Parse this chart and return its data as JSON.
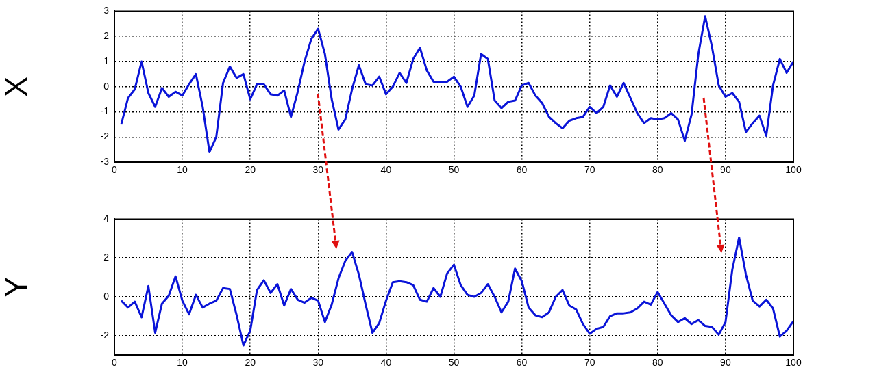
{
  "chart_data": [
    {
      "type": "line",
      "ylabel": "X",
      "color": "#0a14d8",
      "grid": true,
      "xlim": [
        0,
        100
      ],
      "ylim": [
        -3,
        3
      ],
      "xticks": [
        0,
        10,
        20,
        30,
        40,
        50,
        60,
        70,
        80,
        90,
        100
      ],
      "yticks": [
        -3,
        -2,
        -1,
        0,
        1,
        2,
        3
      ],
      "x": [
        1,
        2,
        3,
        4,
        5,
        6,
        7,
        8,
        9,
        10,
        11,
        12,
        13,
        14,
        15,
        16,
        17,
        18,
        19,
        20,
        21,
        22,
        23,
        24,
        25,
        26,
        27,
        28,
        29,
        30,
        31,
        32,
        33,
        34,
        35,
        36,
        37,
        38,
        39,
        40,
        41,
        42,
        43,
        44,
        45,
        46,
        47,
        48,
        49,
        50,
        51,
        52,
        53,
        54,
        55,
        56,
        57,
        58,
        59,
        60,
        61,
        62,
        63,
        64,
        65,
        66,
        67,
        68,
        69,
        70,
        71,
        72,
        73,
        74,
        75,
        76,
        77,
        78,
        79,
        80,
        81,
        82,
        83,
        84,
        85,
        86,
        87,
        88,
        89,
        90,
        91,
        92,
        93,
        94,
        95,
        96,
        97,
        98,
        99,
        100
      ],
      "values": [
        -1.5,
        -0.45,
        -0.1,
        1.0,
        -0.25,
        -0.8,
        -0.05,
        -0.4,
        -0.2,
        -0.35,
        0.1,
        0.5,
        -0.8,
        -2.6,
        -2.0,
        0.15,
        0.8,
        0.35,
        0.5,
        -0.5,
        0.1,
        0.1,
        -0.3,
        -0.35,
        -0.15,
        -1.2,
        -0.2,
        1.0,
        1.9,
        2.3,
        1.3,
        -0.5,
        -1.7,
        -1.3,
        -0.1,
        0.85,
        0.1,
        0.05,
        0.4,
        -0.3,
        0.0,
        0.55,
        0.15,
        1.1,
        1.55,
        0.65,
        0.2,
        0.2,
        0.2,
        0.4,
        0.0,
        -0.8,
        -0.35,
        1.3,
        1.1,
        -0.55,
        -0.85,
        -0.6,
        -0.55,
        0.05,
        0.15,
        -0.35,
        -0.65,
        -1.2,
        -1.45,
        -1.65,
        -1.35,
        -1.25,
        -1.2,
        -0.8,
        -1.05,
        -0.8,
        0.05,
        -0.4,
        0.15,
        -0.45,
        -1.05,
        -1.45,
        -1.25,
        -1.3,
        -1.25,
        -1.05,
        -1.3,
        -2.15,
        -1.1,
        1.3,
        2.8,
        1.6,
        0.05,
        -0.4,
        -0.25,
        -0.6,
        -1.8,
        -1.45,
        -1.15,
        -1.95,
        0.05,
        1.1,
        0.55,
        1.0
      ]
    },
    {
      "type": "line",
      "ylabel": "Y",
      "color": "#0a14d8",
      "grid": true,
      "xlim": [
        0,
        100
      ],
      "ylim": [
        -3,
        4
      ],
      "xticks": [
        0,
        10,
        20,
        30,
        40,
        50,
        60,
        70,
        80,
        90,
        100
      ],
      "yticks": [
        -2,
        0,
        2,
        4
      ],
      "x": [
        1,
        2,
        3,
        4,
        5,
        6,
        7,
        8,
        9,
        10,
        11,
        12,
        13,
        14,
        15,
        16,
        17,
        18,
        19,
        20,
        21,
        22,
        23,
        24,
        25,
        26,
        27,
        28,
        29,
        30,
        31,
        32,
        33,
        34,
        35,
        36,
        37,
        38,
        39,
        40,
        41,
        42,
        43,
        44,
        45,
        46,
        47,
        48,
        49,
        50,
        51,
        52,
        53,
        54,
        55,
        56,
        57,
        58,
        59,
        60,
        61,
        62,
        63,
        64,
        65,
        66,
        67,
        68,
        69,
        70,
        71,
        72,
        73,
        74,
        75,
        76,
        77,
        78,
        79,
        80,
        81,
        82,
        83,
        84,
        85,
        86,
        87,
        88,
        89,
        90,
        91,
        92,
        93,
        94,
        95,
        96,
        97,
        98,
        99,
        100
      ],
      "values": [
        -0.2,
        -0.55,
        -0.25,
        -1.05,
        0.55,
        -1.85,
        -0.35,
        0.05,
        1.05,
        -0.2,
        -0.9,
        0.1,
        -0.55,
        -0.35,
        -0.2,
        0.45,
        0.4,
        -0.95,
        -2.5,
        -1.75,
        0.35,
        0.85,
        0.2,
        0.65,
        -0.45,
        0.4,
        -0.15,
        -0.3,
        -0.05,
        -0.2,
        -1.3,
        -0.4,
        0.95,
        1.85,
        2.3,
        1.15,
        -0.4,
        -1.85,
        -1.35,
        -0.2,
        0.75,
        0.8,
        0.75,
        0.6,
        -0.15,
        -0.25,
        0.45,
        0.0,
        1.2,
        1.65,
        0.6,
        0.1,
        0.0,
        0.2,
        0.65,
        0.0,
        -0.8,
        -0.25,
        1.45,
        0.8,
        -0.55,
        -0.95,
        -1.05,
        -0.8,
        0.0,
        0.35,
        -0.45,
        -0.65,
        -1.4,
        -1.9,
        -1.65,
        -1.55,
        -1.0,
        -0.85,
        -0.85,
        -0.8,
        -0.6,
        -0.25,
        -0.4,
        0.25,
        -0.35,
        -0.95,
        -1.3,
        -1.1,
        -1.4,
        -1.2,
        -1.5,
        -1.55,
        -1.95,
        -1.3,
        1.4,
        3.05,
        1.15,
        -0.2,
        -0.5,
        -0.15,
        -0.6,
        -2.05,
        -1.75,
        -1.25
      ]
    }
  ]
}
